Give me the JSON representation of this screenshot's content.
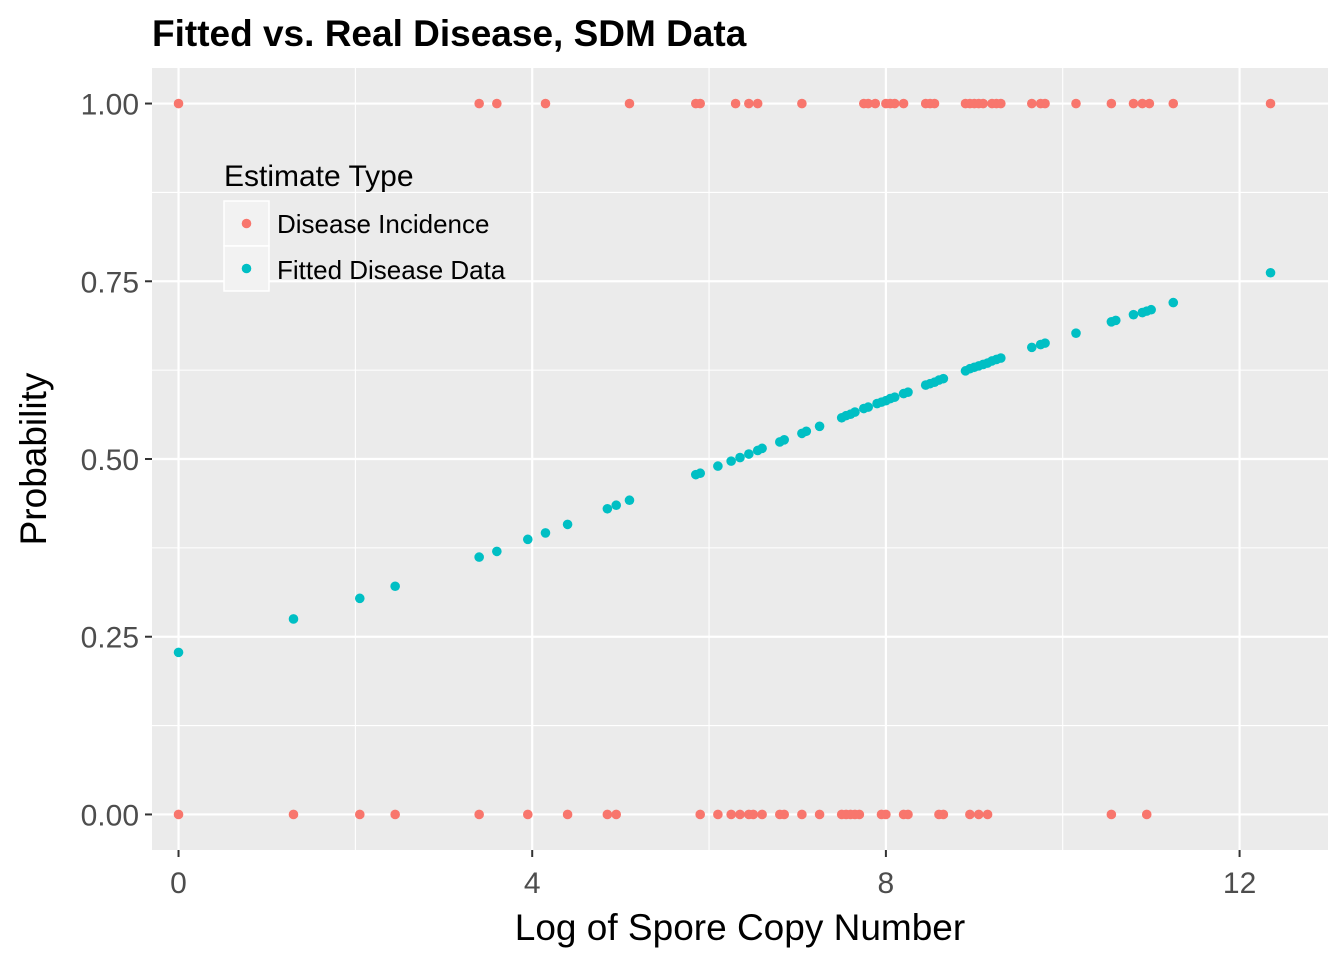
{
  "chart_data": {
    "type": "scatter",
    "title": "Fitted vs. Real Disease, SDM Data",
    "xlabel": "Log of Spore Copy Number",
    "ylabel": "Probability",
    "xlim": [
      -0.3,
      13.0
    ],
    "ylim": [
      -0.05,
      1.05
    ],
    "x_ticks": [
      0,
      4,
      8,
      12
    ],
    "x_tick_labels": [
      "0",
      "4",
      "8",
      "12"
    ],
    "y_ticks": [
      0,
      0.25,
      0.5,
      0.75,
      1.0
    ],
    "y_tick_labels": [
      "0.00",
      "0.25",
      "0.50",
      "0.75",
      "1.00"
    ],
    "grid": true,
    "legend": {
      "title": "Estimate Type",
      "placement": "top-left inside"
    },
    "series": [
      {
        "name": "Disease Incidence",
        "color": "#F8766D",
        "x": [
          0.0,
          3.4,
          3.6,
          4.15,
          5.1,
          5.85,
          5.9,
          6.3,
          6.45,
          6.55,
          7.05,
          7.75,
          7.8,
          7.88,
          8.0,
          8.05,
          8.1,
          8.2,
          8.45,
          8.5,
          8.55,
          8.9,
          8.95,
          9.0,
          9.05,
          9.1,
          9.2,
          9.25,
          9.3,
          9.65,
          9.75,
          9.8,
          10.15,
          10.55,
          10.8,
          10.9,
          10.98,
          11.25,
          12.35,
          0.0,
          1.3,
          2.05,
          2.45,
          3.4,
          3.95,
          4.4,
          4.85,
          4.95,
          5.9,
          6.1,
          6.25,
          6.35,
          6.45,
          6.5,
          6.6,
          6.8,
          6.85,
          7.05,
          7.25,
          7.5,
          7.55,
          7.6,
          7.65,
          7.7,
          7.95,
          8.0,
          8.2,
          8.25,
          8.6,
          8.65,
          8.95,
          9.05,
          9.15,
          10.55,
          10.95
        ],
        "y": [
          1,
          1,
          1,
          1,
          1,
          1,
          1,
          1,
          1,
          1,
          1,
          1,
          1,
          1,
          1,
          1,
          1,
          1,
          1,
          1,
          1,
          1,
          1,
          1,
          1,
          1,
          1,
          1,
          1,
          1,
          1,
          1,
          1,
          1,
          1,
          1,
          1,
          1,
          1,
          0,
          0,
          0,
          0,
          0,
          0,
          0,
          0,
          0,
          0,
          0,
          0,
          0,
          0,
          0,
          0,
          0,
          0,
          0,
          0,
          0,
          0,
          0,
          0,
          0,
          0,
          0,
          0,
          0,
          0,
          0,
          0,
          0,
          0,
          0,
          0
        ]
      },
      {
        "name": "Fitted Disease Data",
        "color": "#00BFC4",
        "x": [
          0.0,
          1.3,
          2.05,
          2.45,
          3.4,
          3.6,
          3.95,
          4.15,
          4.4,
          4.85,
          4.95,
          5.1,
          5.85,
          5.9,
          6.1,
          6.25,
          6.35,
          6.45,
          6.55,
          6.6,
          6.8,
          6.85,
          7.05,
          7.1,
          7.25,
          7.5,
          7.55,
          7.6,
          7.65,
          7.75,
          7.8,
          7.9,
          7.95,
          8.0,
          8.05,
          8.1,
          8.2,
          8.25,
          8.45,
          8.5,
          8.55,
          8.6,
          8.65,
          8.9,
          8.95,
          9.0,
          9.05,
          9.1,
          9.15,
          9.2,
          9.25,
          9.3,
          9.65,
          9.75,
          9.8,
          10.15,
          10.55,
          10.6,
          10.8,
          10.9,
          10.95,
          11.0,
          11.25,
          12.35
        ],
        "y": [
          0.228,
          0.275,
          0.304,
          0.321,
          0.362,
          0.37,
          0.387,
          0.396,
          0.408,
          0.43,
          0.435,
          0.442,
          0.478,
          0.48,
          0.49,
          0.497,
          0.502,
          0.507,
          0.512,
          0.515,
          0.524,
          0.527,
          0.536,
          0.539,
          0.546,
          0.558,
          0.561,
          0.563,
          0.566,
          0.571,
          0.573,
          0.578,
          0.58,
          0.582,
          0.585,
          0.587,
          0.592,
          0.594,
          0.604,
          0.606,
          0.608,
          0.611,
          0.613,
          0.624,
          0.627,
          0.629,
          0.631,
          0.633,
          0.635,
          0.638,
          0.64,
          0.642,
          0.657,
          0.661,
          0.663,
          0.677,
          0.693,
          0.695,
          0.703,
          0.706,
          0.708,
          0.71,
          0.72,
          0.762
        ]
      }
    ]
  }
}
